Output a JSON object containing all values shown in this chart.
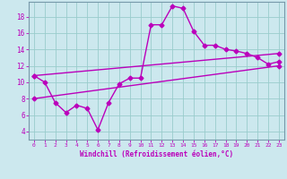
{
  "xlabel": "Windchill (Refroidissement éolien,°C)",
  "bg_color": "#cce8ee",
  "line_color": "#bb00bb",
  "grid_color": "#99cccc",
  "xlim": [
    -0.5,
    23.5
  ],
  "ylim": [
    3.0,
    19.8
  ],
  "xticks": [
    0,
    1,
    2,
    3,
    4,
    5,
    6,
    7,
    8,
    9,
    10,
    11,
    12,
    13,
    14,
    15,
    16,
    17,
    18,
    19,
    20,
    21,
    22,
    23
  ],
  "yticks": [
    4,
    6,
    8,
    10,
    12,
    14,
    16,
    18
  ],
  "line1_x": [
    0,
    1,
    2,
    3,
    4,
    5,
    6,
    7,
    8,
    9,
    10,
    11,
    12,
    13,
    14,
    15,
    16,
    17,
    18,
    19,
    20,
    21,
    22,
    23
  ],
  "line1_y": [
    10.8,
    10.0,
    7.5,
    6.3,
    7.2,
    6.8,
    4.2,
    7.5,
    9.8,
    10.5,
    10.5,
    17.0,
    17.0,
    19.3,
    19.0,
    16.2,
    14.5,
    14.5,
    14.0,
    13.8,
    13.5,
    13.0,
    12.2,
    12.5
  ],
  "line2_x": [
    0,
    23
  ],
  "line2_y": [
    10.8,
    13.5
  ],
  "line3_x": [
    0,
    23
  ],
  "line3_y": [
    8.0,
    12.0
  ],
  "marker": "D",
  "markersize": 2.5,
  "linewidth": 1.0
}
